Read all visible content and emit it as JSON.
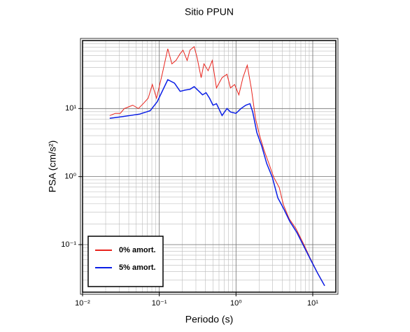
{
  "chart_data": {
    "type": "line",
    "title": "Sitio PPUN",
    "x_label": "Periodo (s)",
    "y_label": "PSA (cm/s²)",
    "xscale": "log",
    "yscale": "log",
    "grid": true,
    "legend": "lower left",
    "xlim": [
      0.01,
      20
    ],
    "ylim": [
      0.02,
      100
    ],
    "xticks": [
      {
        "value": 0.01,
        "label": "10⁻²"
      },
      {
        "value": 0.1,
        "label": "10⁻¹"
      },
      {
        "value": 1,
        "label": "10⁰"
      },
      {
        "value": 10,
        "label": "10¹"
      }
    ],
    "yticks": [
      {
        "value": 0.1,
        "label": "10⁻¹"
      },
      {
        "value": 1,
        "label": "10⁰"
      },
      {
        "value": 10,
        "label": "10¹"
      }
    ],
    "series": [
      {
        "name": "0% amort.",
        "color": "#e8231c",
        "x": [
          0.0226,
          0.0267,
          0.031,
          0.035,
          0.0407,
          0.0451,
          0.0534,
          0.0618,
          0.0716,
          0.0811,
          0.092,
          0.109,
          0.129,
          0.146,
          0.165,
          0.187,
          0.204,
          0.231,
          0.251,
          0.285,
          0.31,
          0.351,
          0.382,
          0.433,
          0.491,
          0.556,
          0.658,
          0.762,
          0.846,
          0.959,
          1.09,
          1.23,
          1.4,
          1.58,
          1.8,
          2.04,
          2.31,
          2.68,
          3.1,
          3.66,
          4.15,
          4.91,
          6.05,
          7.46,
          9.2,
          11.3,
          14.3
        ],
        "values": [
          7.9,
          8.5,
          8.5,
          10,
          10.7,
          11.2,
          10,
          11.8,
          14.2,
          22.6,
          14.2,
          32,
          75.7,
          45.4,
          51,
          64.3,
          72.2,
          51,
          72.2,
          81.2,
          57.3,
          28.5,
          45.4,
          36,
          51,
          20.1,
          28.5,
          32,
          20.1,
          22.6,
          15.9,
          28.5,
          43.3,
          20.1,
          7.05,
          3.94,
          2.48,
          1.56,
          0.977,
          0.69,
          0.385,
          0.242,
          0.171,
          0.107,
          0.0643,
          0.0404,
          0.0248
        ]
      },
      {
        "name": "5% amort.",
        "color": "#0a1ee6",
        "x": [
          0.0226,
          0.033,
          0.0556,
          0.0762,
          0.094,
          0.129,
          0.158,
          0.187,
          0.217,
          0.251,
          0.285,
          0.33,
          0.366,
          0.407,
          0.452,
          0.501,
          0.556,
          0.658,
          0.762,
          0.846,
          1,
          1.16,
          1.34,
          1.52,
          1.65,
          1.87,
          2.17,
          2.51,
          2.97,
          3.51,
          4.15,
          5.01,
          6.18,
          7.62,
          9.39,
          11.6,
          14.3
        ],
        "values": [
          7.2,
          7.6,
          8.3,
          9.3,
          12.6,
          26.6,
          23.6,
          17.9,
          18.7,
          19.2,
          21,
          17.9,
          15.9,
          17.1,
          14.2,
          11.2,
          11.8,
          7.9,
          10,
          8.9,
          8.5,
          10,
          11.2,
          11.8,
          8.9,
          4.43,
          2.78,
          1.56,
          0.977,
          0.486,
          0.343,
          0.22,
          0.152,
          0.0955,
          0.06,
          0.0377,
          0.0248
        ]
      }
    ]
  }
}
